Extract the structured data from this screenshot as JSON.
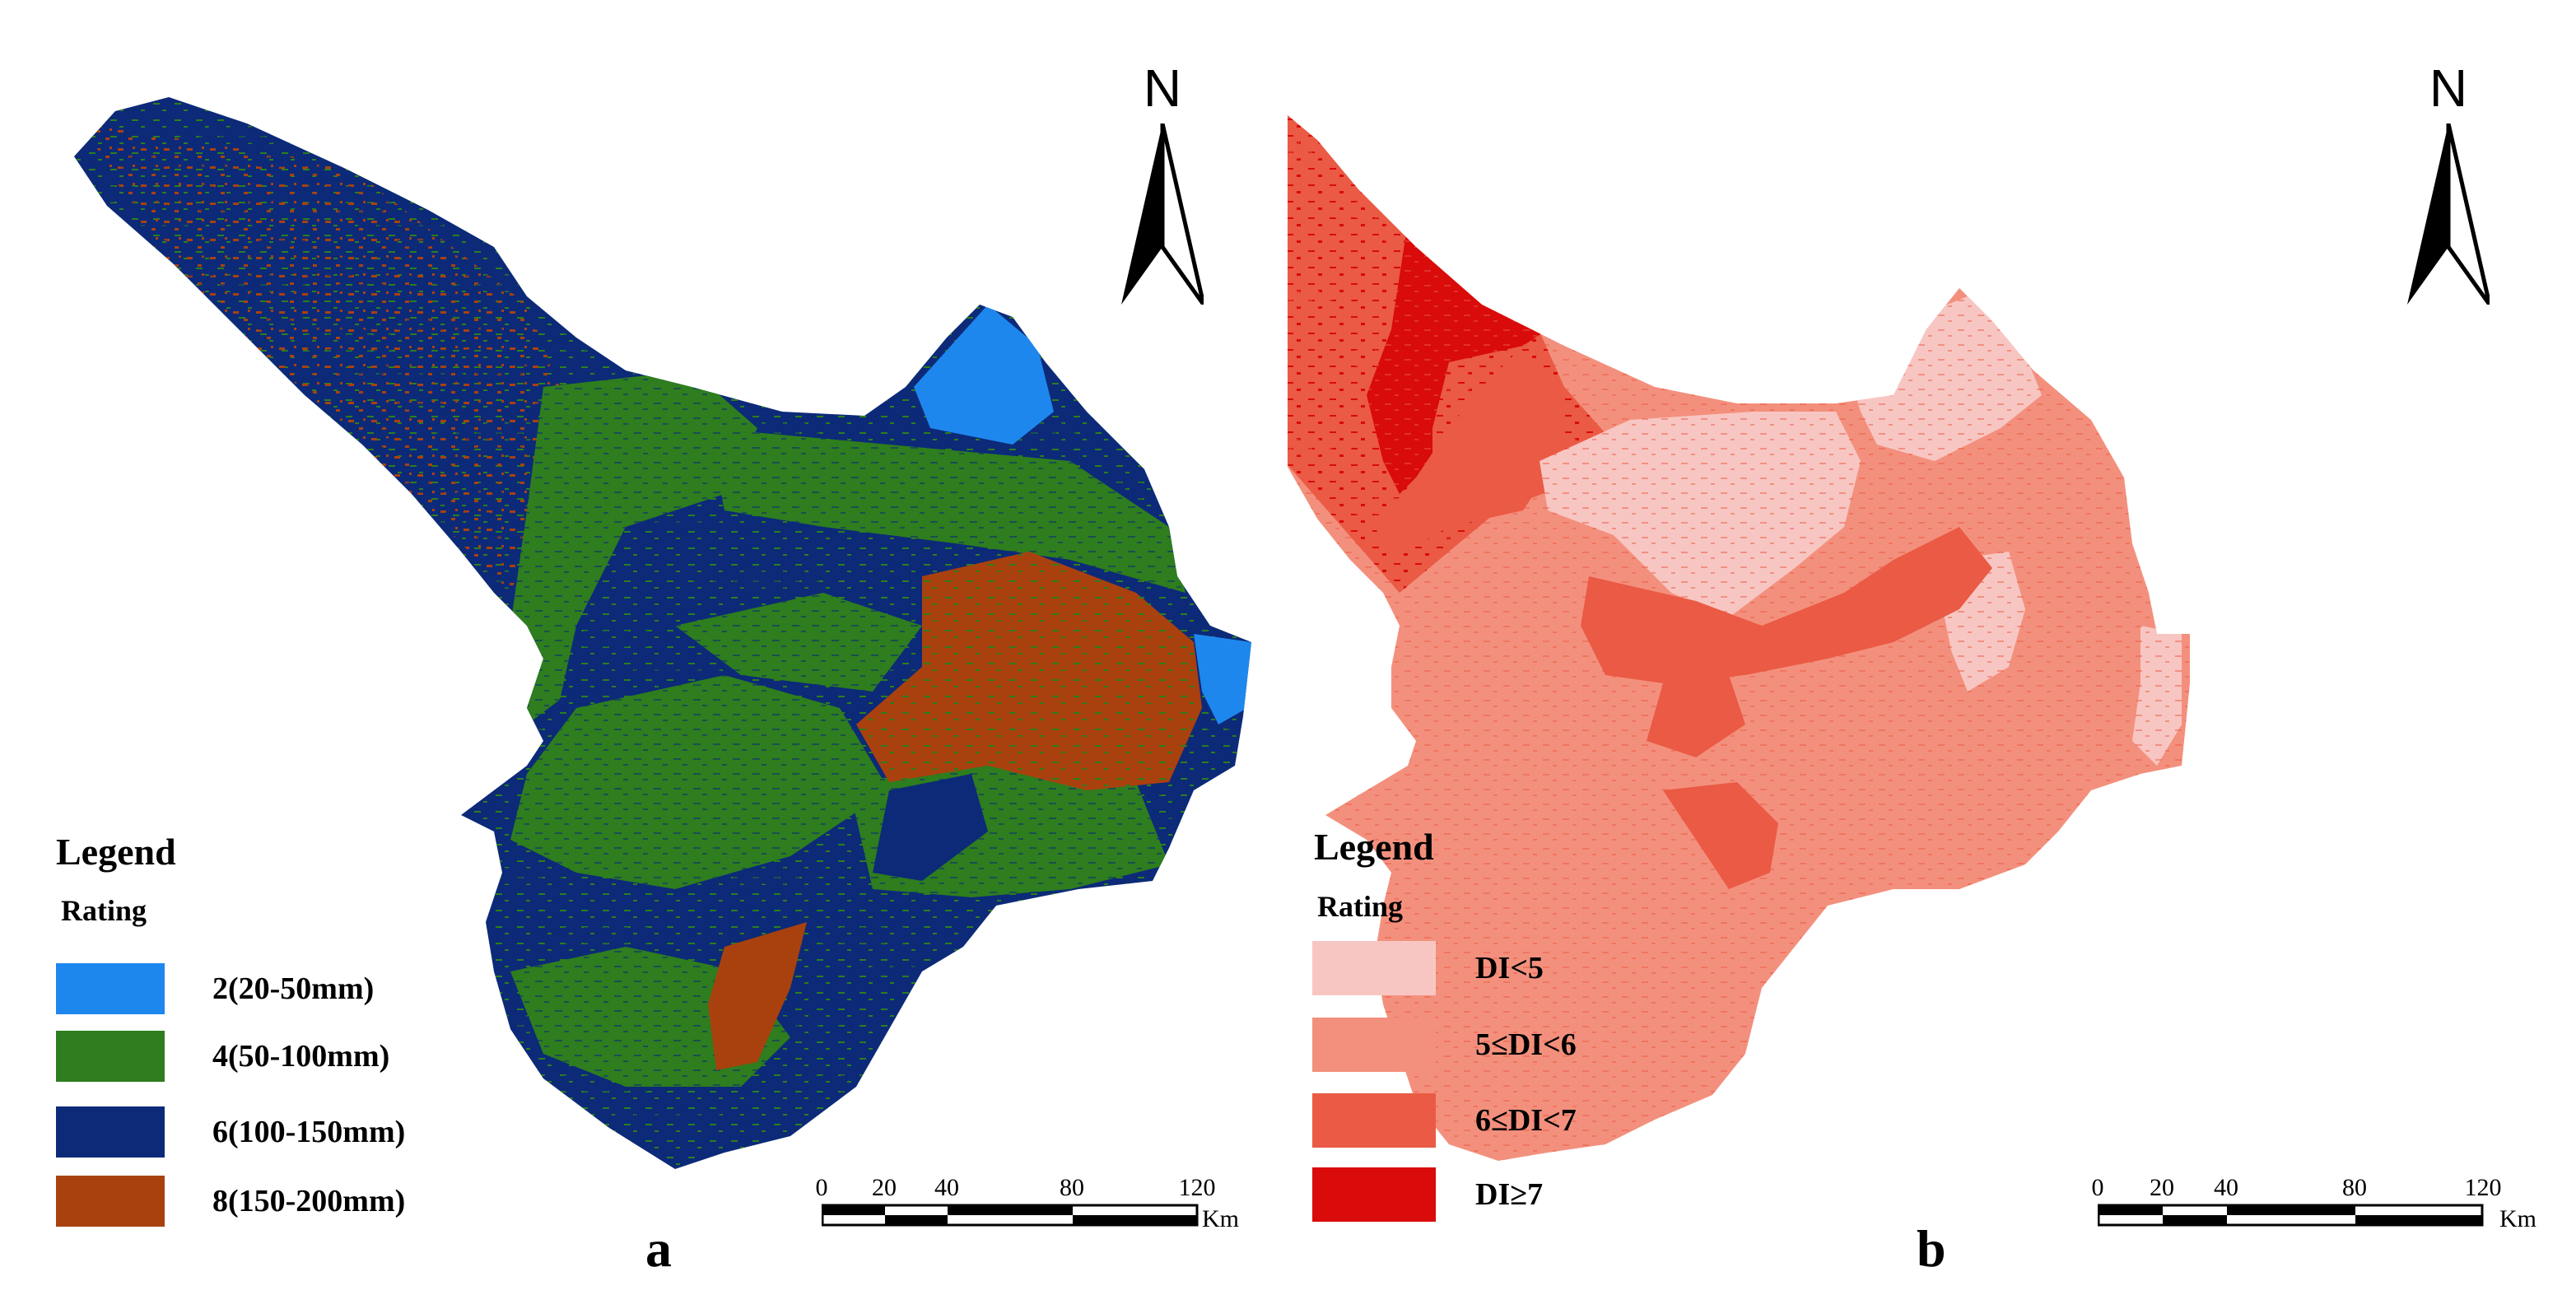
{
  "panels": {
    "a": {
      "label": "a",
      "north": "N",
      "legend": {
        "title": "Legend",
        "subtitle": "Rating",
        "items": [
          {
            "label": "2(20-50mm)",
            "color": "#1e87ee"
          },
          {
            "label": "4(50-100mm)",
            "color": "#2e7d1e"
          },
          {
            "label": "6(100-150mm)",
            "color": "#0c2a78"
          },
          {
            "label": "8(150-200mm)",
            "color": "#a9410f"
          }
        ]
      },
      "scale": {
        "ticks": [
          "0",
          "20",
          "40",
          "80",
          "120"
        ],
        "unit": "Km"
      }
    },
    "b": {
      "label": "b",
      "north": "N",
      "legend": {
        "title": "Legend",
        "subtitle": "Rating",
        "items": [
          {
            "label": "DI<5",
            "color": "#f8c6c2"
          },
          {
            "label": "5≤DI<6",
            "color": "#f3907d"
          },
          {
            "label": "6≤DI<7",
            "color": "#ea5a44"
          },
          {
            "label": "DI≥7",
            "color": "#d90b0b"
          }
        ]
      },
      "scale": {
        "ticks": [
          "0",
          "20",
          "40",
          "80",
          "120"
        ],
        "unit": "Km"
      }
    }
  }
}
